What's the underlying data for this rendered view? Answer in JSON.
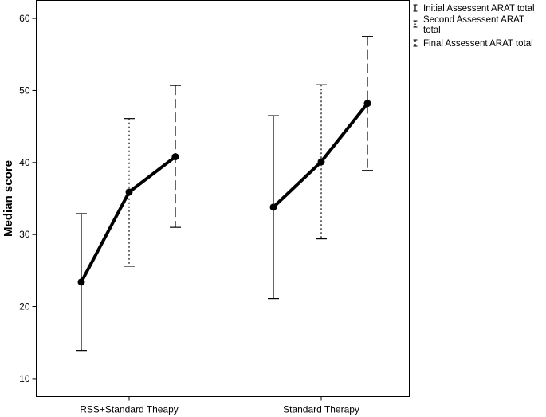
{
  "chart_data": {
    "type": "line",
    "title": "",
    "xlabel": "",
    "ylabel": "Median score",
    "ylim": [
      7.5,
      62.5
    ],
    "yticks": [
      10,
      20,
      30,
      40,
      50,
      60
    ],
    "grid": false,
    "legend_position": "right",
    "categories": [
      "RSS+Standard Theapy",
      "Standard Therapy"
    ],
    "series": [
      {
        "name": "Initial Assessent ARAT total",
        "line_style": "solid",
        "median": [
          23.4,
          33.8
        ],
        "lower": [
          13.9,
          21.1
        ],
        "upper": [
          32.9,
          46.5
        ]
      },
      {
        "name": "Second Assessent ARAT total",
        "line_style": "dotted",
        "median": [
          35.9,
          40.1
        ],
        "lower": [
          25.6,
          29.4
        ],
        "upper": [
          46.1,
          50.8
        ]
      },
      {
        "name": "Final Assessent ARAT total",
        "line_style": "dashed",
        "median": [
          40.8,
          48.2
        ],
        "lower": [
          31.0,
          38.9
        ],
        "upper": [
          50.7,
          57.5
        ]
      }
    ]
  }
}
